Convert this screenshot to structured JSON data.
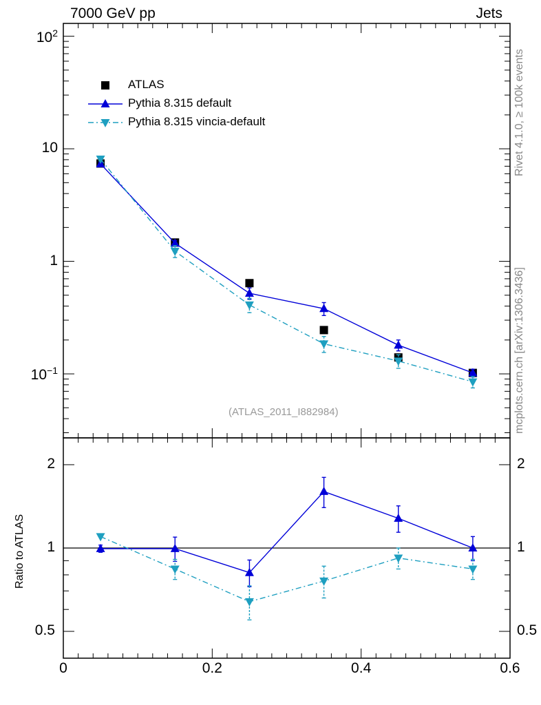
{
  "header": {
    "left": "7000 GeV pp",
    "right": "Jets"
  },
  "side_text": {
    "rivet": "Rivet 4.1.0, ≥ 100k events",
    "mcplots": "mcplots.cern.ch [arXiv:1306.3436]"
  },
  "analysis_id": "(ATLAS_2011_I882984)",
  "colors": {
    "atlas": "#000000",
    "default": "#0000d8",
    "vincia": "#1e9fc0"
  },
  "chart_data": [
    {
      "type": "line",
      "panel": "main",
      "yscale": "log",
      "xlim": [
        0,
        0.6
      ],
      "ylim": [
        0.027,
        130
      ],
      "y_tick_labels": [
        {
          "value": 100,
          "base": "10",
          "exp": "2"
        },
        {
          "value": 10,
          "text": "10"
        },
        {
          "value": 1,
          "text": "1"
        },
        {
          "value": 0.1,
          "base": "10",
          "exp": "−1"
        }
      ],
      "legend": [
        "ATLAS",
        "Pythia 8.315 default",
        "Pythia 8.315 vincia-default"
      ],
      "legend_position": "top-left",
      "x": [
        0.05,
        0.15,
        0.25,
        0.35,
        0.45,
        0.55
      ],
      "series": [
        {
          "name": "ATLAS",
          "marker": "square",
          "values": [
            7.4,
            1.47,
            0.64,
            0.245,
            0.14,
            0.102
          ],
          "err": [
            0,
            0,
            0,
            0,
            0,
            0
          ]
        },
        {
          "name": "Pythia 8.315 default",
          "marker": "triangle-up",
          "line": "solid",
          "values": [
            7.35,
            1.45,
            0.52,
            0.38,
            0.18,
            0.102
          ],
          "err": [
            0.25,
            0.08,
            0.06,
            0.05,
            0.02,
            0.008
          ]
        },
        {
          "name": "Pythia 8.315 vincia-default",
          "marker": "triangle-down",
          "line": "dashdot",
          "values": [
            8.1,
            1.23,
            0.41,
            0.185,
            0.13,
            0.085
          ],
          "err": [
            0.3,
            0.15,
            0.06,
            0.03,
            0.018,
            0.01
          ]
        }
      ]
    },
    {
      "type": "line",
      "panel": "ratio",
      "yscale": "log",
      "ylabel": "Ratio to ATLAS",
      "xlim": [
        0,
        0.6
      ],
      "ylim": [
        0.4,
        2.5
      ],
      "y_tick_labels": [
        {
          "value": 2,
          "text": "2"
        },
        {
          "value": 1,
          "text": "1"
        },
        {
          "value": 0.5,
          "text": "0.5"
        }
      ],
      "x_tick_labels": [
        {
          "value": 0,
          "text": "0"
        },
        {
          "value": 0.2,
          "text": "0.2"
        },
        {
          "value": 0.4,
          "text": "0.4"
        },
        {
          "value": 0.6,
          "text": "0.6"
        }
      ],
      "reference_line": 1,
      "x": [
        0.05,
        0.15,
        0.25,
        0.35,
        0.45,
        0.55
      ],
      "series": [
        {
          "name": "Pythia 8.315 default",
          "marker": "triangle-up",
          "line": "solid",
          "values": [
            0.995,
            0.995,
            0.815,
            1.6,
            1.28,
            1.0
          ],
          "err": [
            0.03,
            0.1,
            0.09,
            0.2,
            0.14,
            0.1
          ]
        },
        {
          "name": "Pythia 8.315 vincia-default",
          "marker": "triangle-down",
          "line": "dashdot",
          "values": [
            1.1,
            0.84,
            0.64,
            0.76,
            0.92,
            0.84
          ],
          "err": [
            0.0,
            0.07,
            0.09,
            0.1,
            0.08,
            0.07
          ]
        }
      ]
    }
  ]
}
